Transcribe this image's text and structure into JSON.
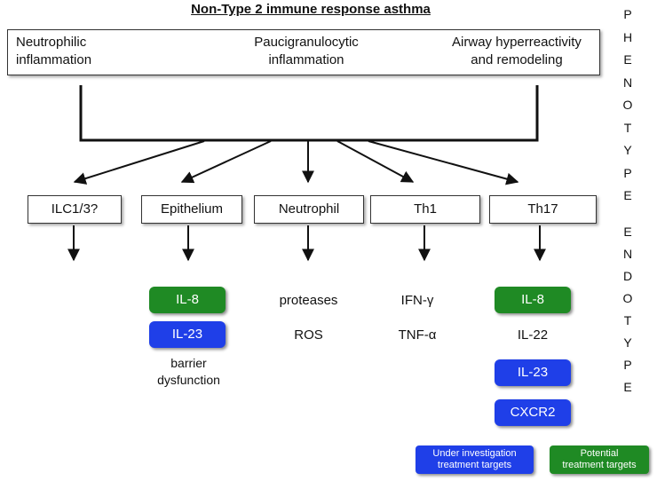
{
  "title": "Non-Type 2 immune response asthma",
  "phenotypes": [
    "Neutrophilic\ninflammation",
    "Paucigranulocytic\ninflammation",
    "Airway hyperreactivity\nand remodeling"
  ],
  "cells": [
    "ILC1/3?",
    "Epithelium",
    "Neutrophil",
    "Th1",
    "Th17"
  ],
  "epithelium": {
    "targets": [
      {
        "label": "IL-8",
        "kind": "potential"
      },
      {
        "label": "IL-23",
        "kind": "investigation"
      }
    ],
    "note": "barrier\ndysfunction"
  },
  "neutrophil": {
    "products": [
      "proteases",
      "ROS"
    ]
  },
  "th1": {
    "products": [
      "IFN-γ",
      "TNF-α"
    ]
  },
  "th17": {
    "il8": "IL-8",
    "il22": "IL-22",
    "il23": "IL-23",
    "cxcr2": "CXCR2"
  },
  "side_labels": {
    "phenotype": [
      "P",
      "H",
      "E",
      "N",
      "O",
      "T",
      "Y",
      "P",
      "E"
    ],
    "endotype": [
      "E",
      "N",
      "D",
      "O",
      "T",
      "Y",
      "P",
      "E"
    ]
  },
  "legend": {
    "investigation": "Under investigation\ntreatment targets",
    "potential": "Potential\ntreatment targets"
  },
  "colors": {
    "investigation": "#1f3fe8",
    "potential": "#1f8a24",
    "border": "#333333"
  }
}
